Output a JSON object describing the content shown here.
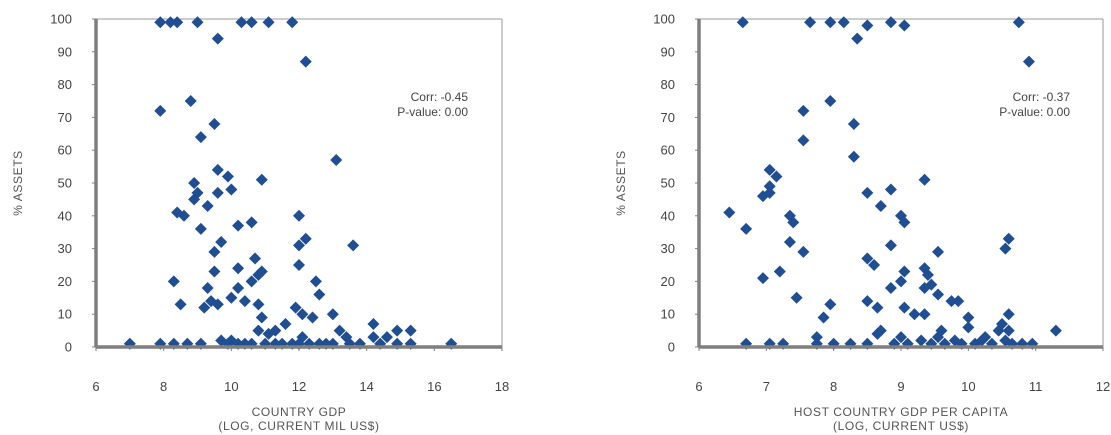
{
  "chart_data": [
    {
      "type": "scatter",
      "xlabel": "COUNTRY GDP",
      "xlabel2": "(LOG, CURRENT MIL US$)",
      "ylabel": "% ASSETS",
      "xlim": [
        6,
        18
      ],
      "ylim": [
        0,
        100
      ],
      "xticks": [
        6,
        8,
        10,
        12,
        14,
        16,
        18
      ],
      "yticks": [
        0,
        10,
        20,
        30,
        40,
        50,
        60,
        70,
        80,
        90,
        100
      ],
      "annotation": [
        "Corr: -0.45",
        "P-value: 0.00"
      ],
      "grid": false,
      "marker_color": "#1f4e93",
      "points": [
        [
          7.9,
          99
        ],
        [
          8.2,
          99
        ],
        [
          8.4,
          99
        ],
        [
          9.0,
          99
        ],
        [
          10.3,
          99
        ],
        [
          10.6,
          99
        ],
        [
          11.1,
          99
        ],
        [
          11.8,
          99
        ],
        [
          9.6,
          94
        ],
        [
          12.2,
          87
        ],
        [
          8.8,
          75
        ],
        [
          7.9,
          72
        ],
        [
          9.5,
          68
        ],
        [
          9.1,
          64
        ],
        [
          13.1,
          57
        ],
        [
          9.6,
          54
        ],
        [
          9.9,
          52
        ],
        [
          10.9,
          51
        ],
        [
          8.9,
          50
        ],
        [
          9.0,
          47
        ],
        [
          9.6,
          47
        ],
        [
          10.0,
          48
        ],
        [
          8.9,
          45
        ],
        [
          9.3,
          43
        ],
        [
          8.4,
          41
        ],
        [
          8.6,
          40
        ],
        [
          12.0,
          40
        ],
        [
          10.2,
          37
        ],
        [
          10.6,
          38
        ],
        [
          9.1,
          36
        ],
        [
          12.2,
          33
        ],
        [
          12.0,
          31
        ],
        [
          13.6,
          31
        ],
        [
          9.7,
          32
        ],
        [
          9.5,
          29
        ],
        [
          10.7,
          27
        ],
        [
          12.0,
          25
        ],
        [
          9.5,
          23
        ],
        [
          10.2,
          24
        ],
        [
          10.9,
          23
        ],
        [
          10.8,
          22
        ],
        [
          10.6,
          20
        ],
        [
          12.5,
          20
        ],
        [
          8.3,
          20
        ],
        [
          10.2,
          18
        ],
        [
          9.3,
          18
        ],
        [
          12.6,
          16
        ],
        [
          8.5,
          13
        ],
        [
          9.4,
          14
        ],
        [
          9.6,
          13
        ],
        [
          10.0,
          15
        ],
        [
          10.4,
          14
        ],
        [
          10.8,
          13
        ],
        [
          9.2,
          12
        ],
        [
          11.9,
          12
        ],
        [
          12.1,
          10
        ],
        [
          13.0,
          10
        ],
        [
          10.9,
          9
        ],
        [
          12.4,
          9
        ],
        [
          11.6,
          7
        ],
        [
          14.2,
          7
        ],
        [
          10.8,
          5
        ],
        [
          11.3,
          5
        ],
        [
          13.2,
          5
        ],
        [
          14.9,
          5
        ],
        [
          15.3,
          5
        ],
        [
          11.1,
          4
        ],
        [
          12.1,
          3
        ],
        [
          13.4,
          3
        ],
        [
          14.2,
          3
        ],
        [
          14.6,
          3
        ],
        [
          9.7,
          2
        ],
        [
          10.0,
          2
        ],
        [
          10.4,
          1
        ],
        [
          11.0,
          1
        ],
        [
          11.5,
          1
        ],
        [
          12.0,
          1
        ],
        [
          12.6,
          1
        ],
        [
          13.0,
          1
        ],
        [
          13.8,
          1
        ],
        [
          14.9,
          1
        ],
        [
          15.3,
          1
        ],
        [
          7.0,
          1
        ],
        [
          7.9,
          1
        ],
        [
          8.3,
          1
        ],
        [
          8.7,
          1
        ],
        [
          9.1,
          1
        ],
        [
          9.9,
          1
        ],
        [
          10.2,
          1
        ],
        [
          10.6,
          1
        ],
        [
          11.3,
          1
        ],
        [
          11.8,
          1
        ],
        [
          12.3,
          1
        ],
        [
          12.8,
          1
        ],
        [
          13.5,
          1
        ],
        [
          14.4,
          1
        ],
        [
          16.5,
          1
        ]
      ]
    },
    {
      "type": "scatter",
      "xlabel": "HOST COUNTRY GDP PER CAPITA",
      "xlabel2": "(LOG, CURRENT US$)",
      "ylabel": "% ASSETS",
      "xlim": [
        6,
        12
      ],
      "ylim": [
        0,
        100
      ],
      "xticks": [
        6,
        7,
        8,
        9,
        10,
        11,
        12
      ],
      "yticks": [
        0,
        10,
        20,
        30,
        40,
        50,
        60,
        70,
        80,
        90,
        100
      ],
      "annotation": [
        "Corr: -0.37",
        "P-value: 0.00"
      ],
      "grid": false,
      "marker_color": "#1f4e93",
      "points": [
        [
          6.65,
          99
        ],
        [
          7.65,
          99
        ],
        [
          7.95,
          99
        ],
        [
          8.15,
          99
        ],
        [
          8.5,
          98
        ],
        [
          8.85,
          99
        ],
        [
          9.05,
          98
        ],
        [
          10.75,
          99
        ],
        [
          8.35,
          94
        ],
        [
          10.9,
          87
        ],
        [
          7.95,
          75
        ],
        [
          7.55,
          72
        ],
        [
          8.3,
          68
        ],
        [
          7.55,
          63
        ],
        [
          8.3,
          58
        ],
        [
          7.05,
          54
        ],
        [
          7.15,
          52
        ],
        [
          9.35,
          51
        ],
        [
          7.05,
          49
        ],
        [
          6.95,
          46
        ],
        [
          7.05,
          47
        ],
        [
          8.85,
          48
        ],
        [
          8.5,
          47
        ],
        [
          8.7,
          43
        ],
        [
          6.45,
          41
        ],
        [
          7.35,
          40
        ],
        [
          9.0,
          40
        ],
        [
          7.4,
          38
        ],
        [
          9.05,
          38
        ],
        [
          6.7,
          36
        ],
        [
          10.6,
          33
        ],
        [
          10.55,
          30
        ],
        [
          7.35,
          32
        ],
        [
          8.85,
          31
        ],
        [
          7.55,
          29
        ],
        [
          9.55,
          29
        ],
        [
          8.5,
          27
        ],
        [
          8.6,
          25
        ],
        [
          9.35,
          24
        ],
        [
          7.2,
          23
        ],
        [
          9.05,
          23
        ],
        [
          9.4,
          22
        ],
        [
          6.95,
          21
        ],
        [
          9.0,
          20
        ],
        [
          9.45,
          19
        ],
        [
          9.35,
          18
        ],
        [
          8.85,
          18
        ],
        [
          9.55,
          16
        ],
        [
          7.45,
          15
        ],
        [
          8.5,
          14
        ],
        [
          9.75,
          14
        ],
        [
          9.85,
          14
        ],
        [
          7.95,
          13
        ],
        [
          9.05,
          12
        ],
        [
          8.65,
          12
        ],
        [
          10.0,
          9
        ],
        [
          7.85,
          9
        ],
        [
          9.2,
          10
        ],
        [
          9.35,
          10
        ],
        [
          10.6,
          10
        ],
        [
          10.5,
          7
        ],
        [
          10.0,
          6
        ],
        [
          10.45,
          5
        ],
        [
          10.6,
          5
        ],
        [
          11.3,
          5
        ],
        [
          9.6,
          5
        ],
        [
          8.65,
          4
        ],
        [
          7.75,
          3
        ],
        [
          9.3,
          2
        ],
        [
          9.8,
          2
        ],
        [
          10.2,
          2
        ],
        [
          10.8,
          1
        ],
        [
          6.7,
          1
        ],
        [
          7.05,
          1
        ],
        [
          7.25,
          1
        ],
        [
          7.75,
          1
        ],
        [
          8.0,
          1
        ],
        [
          8.25,
          1
        ],
        [
          8.5,
          1
        ],
        [
          8.9,
          1
        ],
        [
          9.1,
          1
        ],
        [
          9.45,
          1
        ],
        [
          9.65,
          1
        ],
        [
          9.9,
          1
        ],
        [
          10.1,
          1
        ],
        [
          10.35,
          1
        ],
        [
          10.65,
          1
        ],
        [
          10.95,
          1
        ],
        [
          9.55,
          3
        ],
        [
          9.0,
          3
        ],
        [
          10.25,
          3
        ],
        [
          10.55,
          2
        ],
        [
          8.7,
          5
        ]
      ]
    }
  ]
}
